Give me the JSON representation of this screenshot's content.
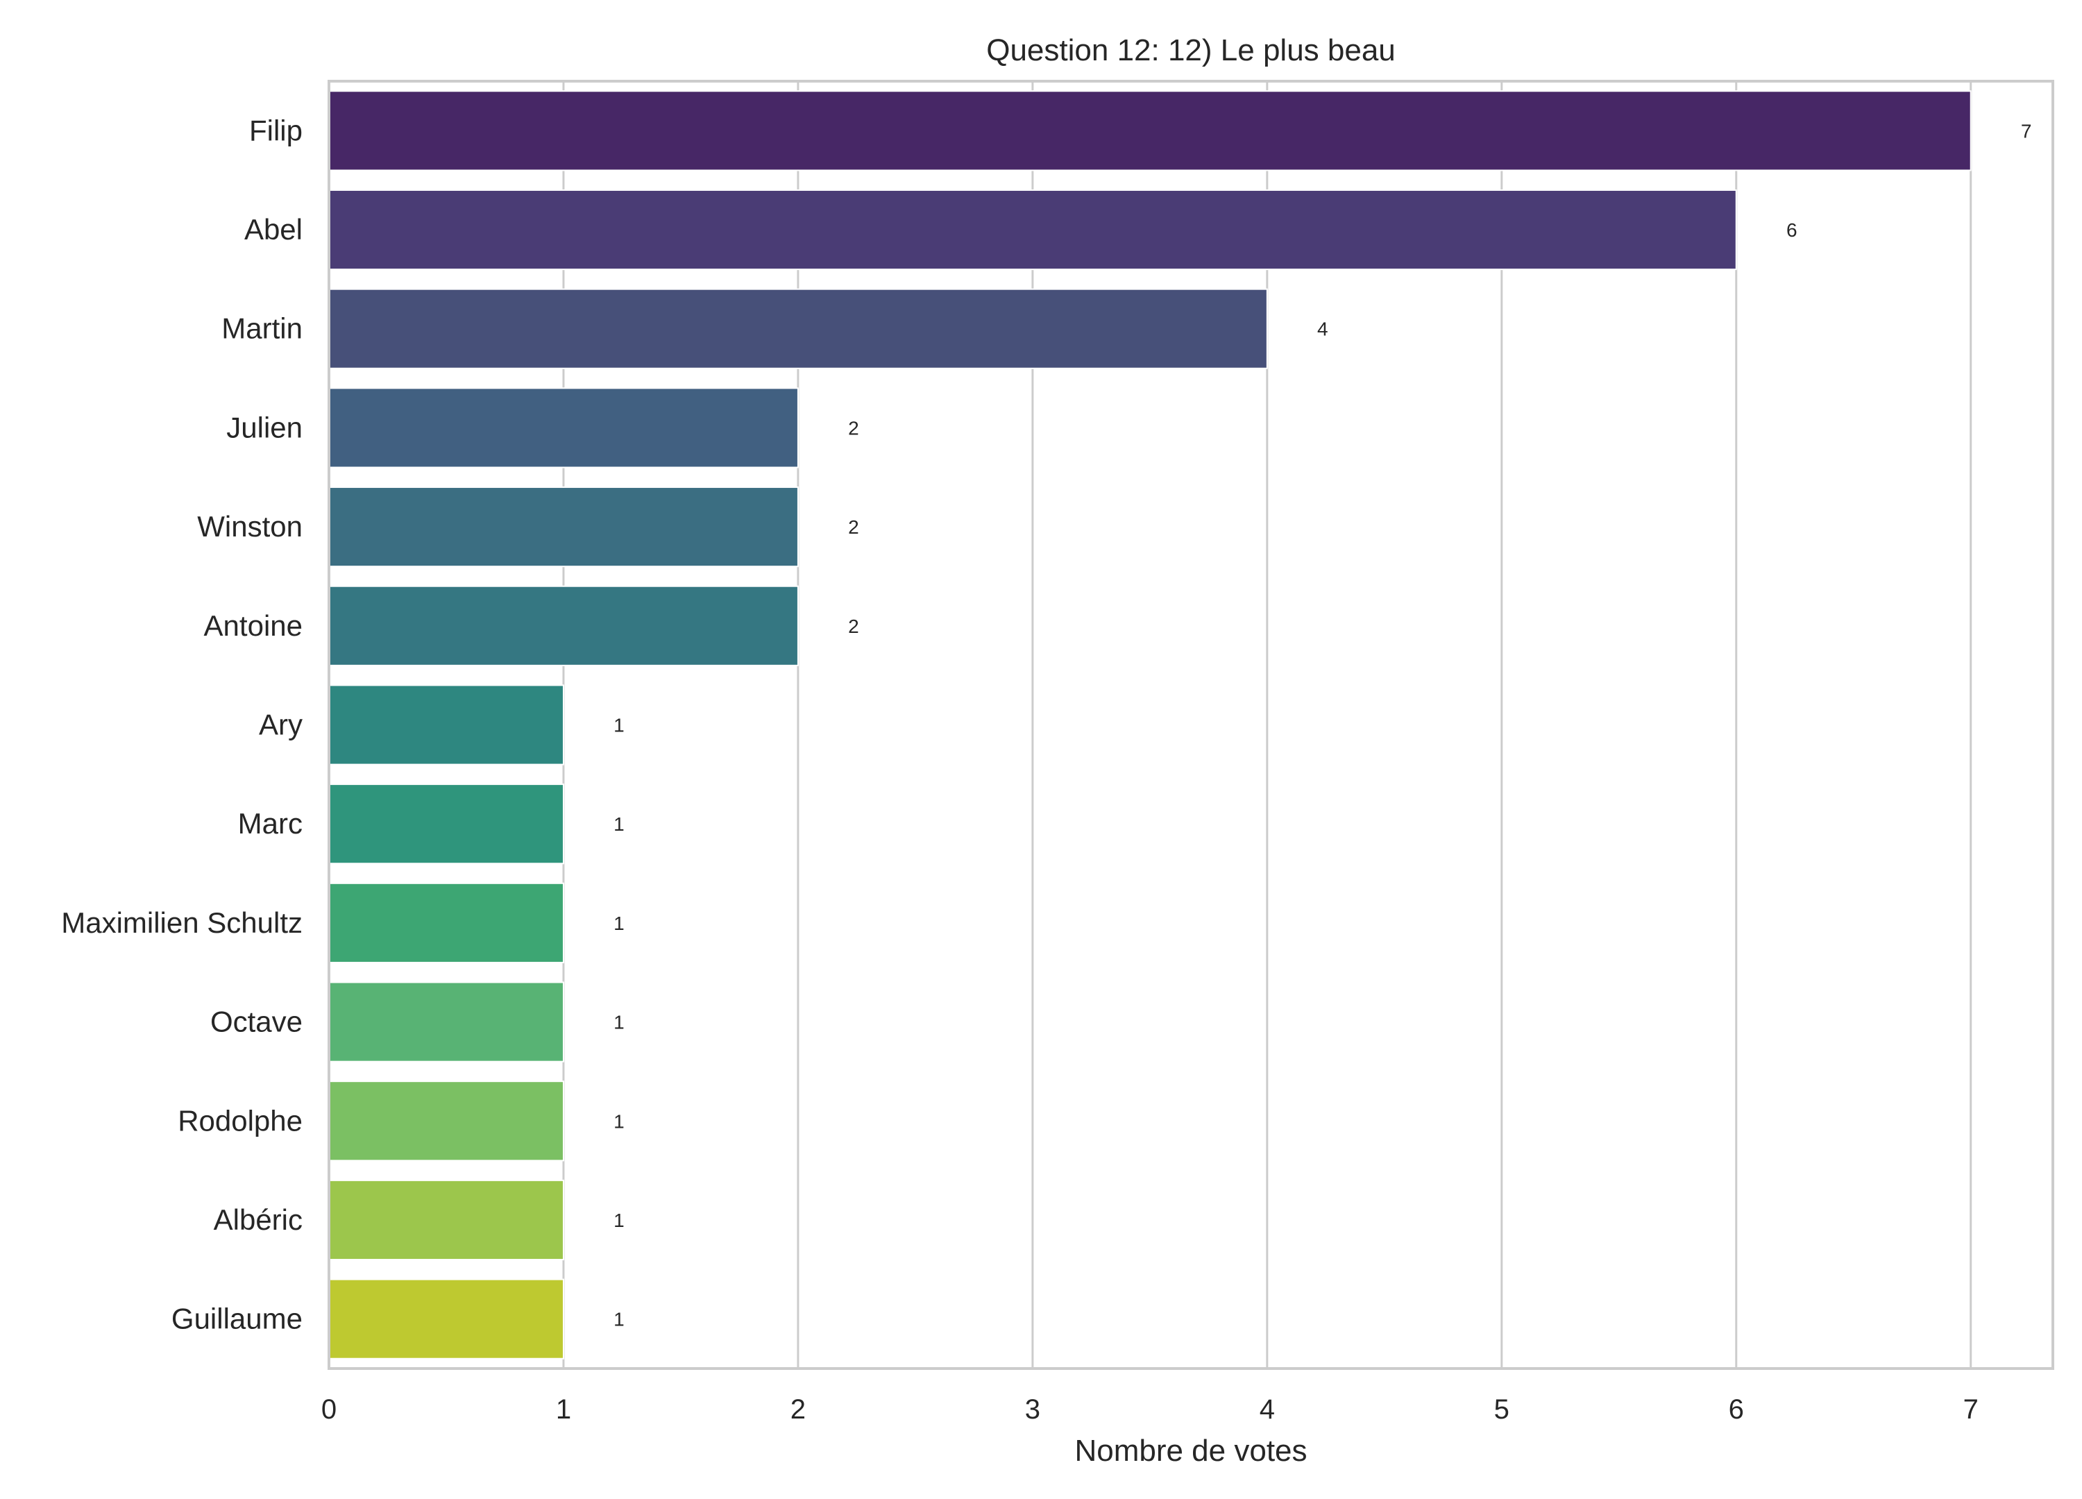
{
  "chart_data": {
    "type": "bar",
    "orientation": "horizontal",
    "title": "Question 12: 12) Le plus beau",
    "xlabel": "Nombre de votes",
    "ylabel": "",
    "xlim": [
      0,
      7.35
    ],
    "xticks": [
      "0",
      "1",
      "2",
      "3",
      "4",
      "5",
      "6",
      "7"
    ],
    "grid": true,
    "categories": [
      "Filip",
      "Abel",
      "Martin",
      "Julien",
      "Winston",
      "Antoine",
      "Ary",
      "Marc",
      "Maximilien Schultz",
      "Octave",
      "Rodolphe",
      "Albéric",
      "Guillaume"
    ],
    "values": [
      7,
      6,
      4,
      2,
      2,
      2,
      1,
      1,
      1,
      1,
      1,
      1,
      1
    ],
    "colors": [
      "#472766",
      "#4a3c75",
      "#475079",
      "#416081",
      "#3b6e82",
      "#357782",
      "#2e8780",
      "#2f957c",
      "#3da673",
      "#58b374",
      "#7bc063",
      "#9cc64c",
      "#bec930"
    ]
  }
}
